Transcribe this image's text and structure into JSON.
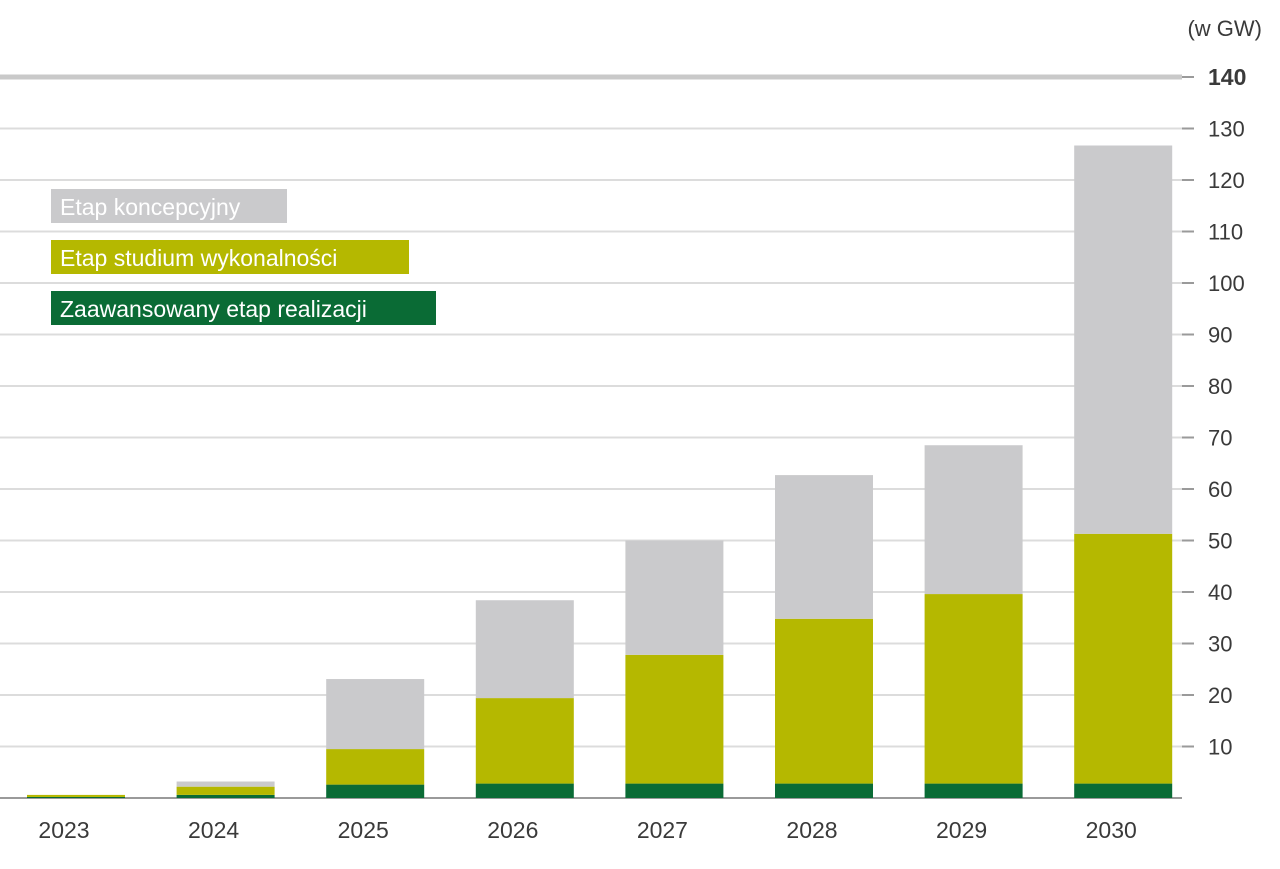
{
  "chart_data": {
    "type": "bar",
    "stacked": true,
    "unit_label": "(w GW)",
    "categories": [
      "2023",
      "2024",
      "2025",
      "2026",
      "2027",
      "2028",
      "2029",
      "2030"
    ],
    "series": [
      {
        "name": "Zaawansowany etap realizacji",
        "color": "#0a6b35",
        "values": [
          0.2,
          0.6,
          2.6,
          2.8,
          2.8,
          2.8,
          2.8,
          2.8
        ]
      },
      {
        "name": "Etap studium wykonalności",
        "color": "#b5b800",
        "values": [
          0.4,
          1.6,
          6.9,
          16.6,
          25.0,
          32.0,
          36.8,
          48.5
        ]
      },
      {
        "name": "Etap koncepcyjny",
        "color": "#cacacc",
        "values": [
          0,
          1.0,
          13.6,
          19.0,
          22.2,
          27.9,
          28.9,
          75.4
        ]
      }
    ],
    "ylim": [
      0,
      140
    ],
    "yticks": [
      10,
      20,
      30,
      40,
      50,
      60,
      70,
      80,
      90,
      100,
      110,
      120,
      130,
      140
    ],
    "ytick_labels": [
      "10",
      "20",
      "30",
      "40",
      "50",
      "60",
      "70",
      "80",
      "90",
      "100",
      "110",
      "120",
      "130",
      "140"
    ],
    "y_axis_side": "right",
    "grid": true,
    "legend_placement": "top-left",
    "legend_order": [
      "Etap koncepcyjny",
      "Etap studium wykonalności",
      "Zaawansowany etap realizacji"
    ],
    "xlabel": "",
    "ylabel": ""
  }
}
